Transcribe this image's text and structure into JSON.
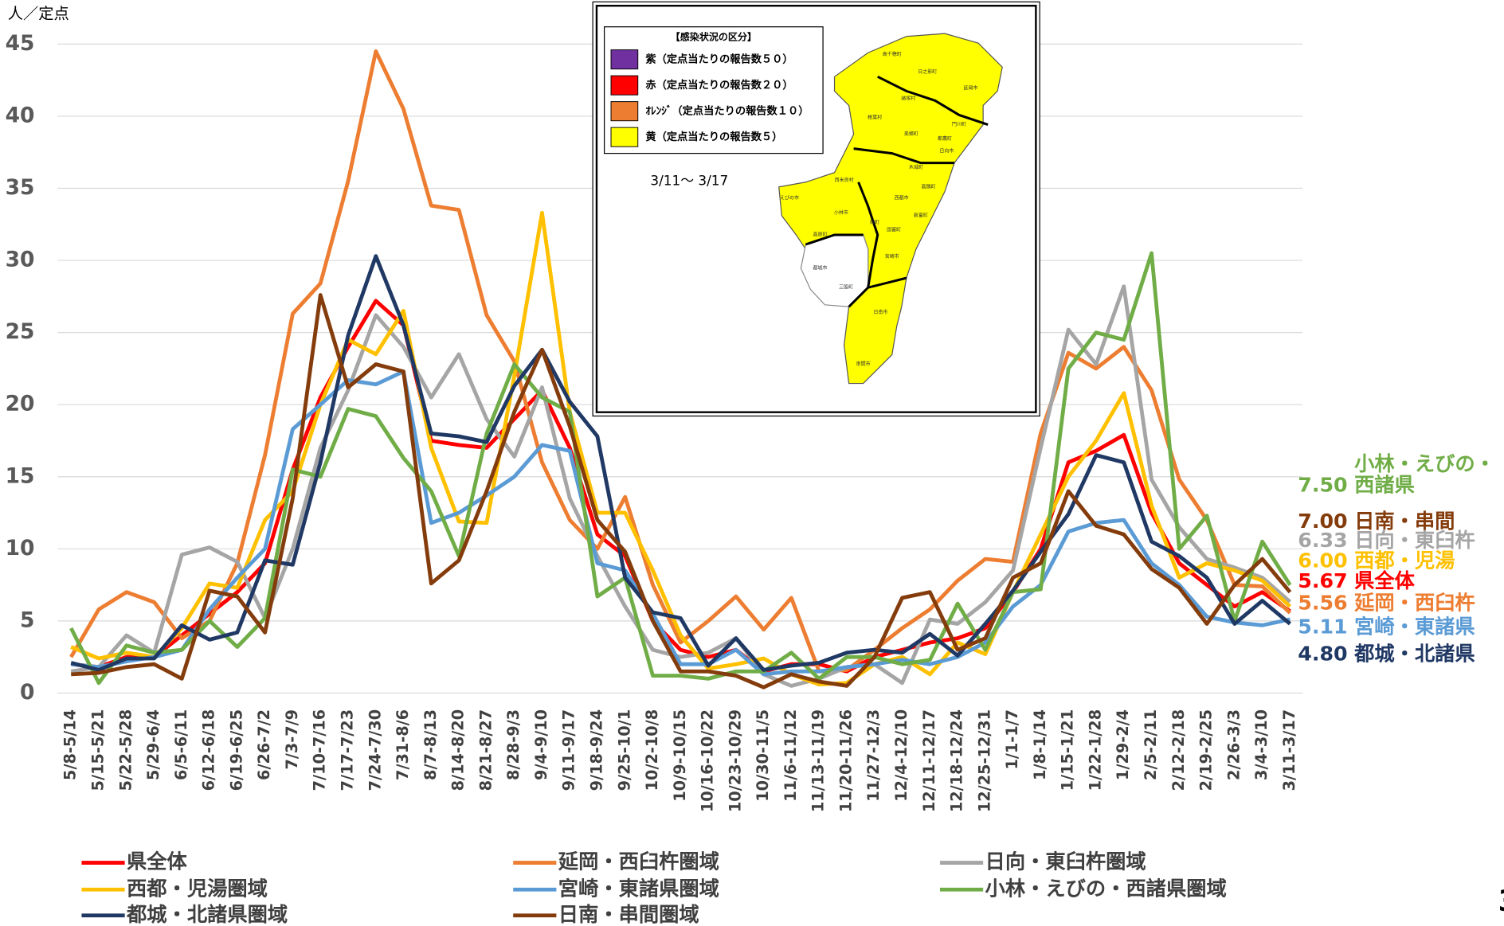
{
  "chart_data": {
    "type": "line",
    "y_axis_label": "人／定点",
    "page_number": "3",
    "categories": [
      "5/8-5/14",
      "5/15-5/21",
      "5/22-5/28",
      "5/29-6/4",
      "6/5-6/11",
      "6/12-6/18",
      "6/19-6/25",
      "6/26-7/2",
      "7/3-7/9",
      "7/10-7/16",
      "7/17-7/23",
      "7/24-7/30",
      "7/31-8/6",
      "8/7-8/13",
      "8/14-8/20",
      "8/21-8/27",
      "8/28-9/3",
      "9/4-9/10",
      "9/11-9/17",
      "9/18-9/24",
      "9/25-10/1",
      "10/2-10/8",
      "10/9-10/15",
      "10/16-10/22",
      "10/23-10/29",
      "10/30-11/5",
      "11/6-11/12",
      "11/13-11/19",
      "11/20-11/26",
      "11/27-12/3",
      "12/4-12/10",
      "12/11-12/17",
      "12/18-12/24",
      "12/25-12/31",
      "1/1-1/7",
      "1/8-1/14",
      "1/15-1/21",
      "1/22-1/28",
      "1/29-2/4",
      "2/5-2/11",
      "2/12-2/18",
      "2/19-2/25",
      "2/26-3/3",
      "3/4-3/10",
      "3/11-3/17"
    ],
    "ylim": [
      0,
      45
    ],
    "yticks": [
      0,
      5,
      10,
      15,
      20,
      25,
      30,
      35,
      40,
      45
    ],
    "grid": true,
    "series": [
      {
        "name": "県全体",
        "short_name": "県全体",
        "color": "#ff0000",
        "values": [
          2.0,
          1.8,
          2.5,
          2.5,
          4.0,
          5.5,
          7.0,
          9.0,
          15.5,
          20.5,
          24.0,
          27.2,
          25.5,
          17.5,
          17.2,
          17.0,
          19.0,
          21.0,
          17.0,
          11.0,
          9.5,
          5.0,
          3.0,
          2.5,
          3.0,
          1.5,
          2.0,
          2.0,
          1.5,
          2.5,
          3.0,
          3.5,
          3.8,
          4.5,
          7.0,
          10.0,
          16.0,
          16.8,
          17.9,
          12.5,
          9.0,
          7.5,
          6.0,
          7.0,
          5.67
        ],
        "value_labels": [
          null,
          null,
          null,
          null,
          null,
          null,
          null,
          null,
          null,
          null,
          null,
          null,
          null,
          null,
          null,
          null,
          null,
          null,
          null,
          null,
          null,
          null,
          null,
          null,
          null,
          null,
          null,
          null,
          null,
          null,
          null,
          null,
          null,
          null,
          null,
          null,
          null,
          null,
          null,
          null,
          null,
          null,
          null,
          null,
          "5.67"
        ]
      },
      {
        "name": "延岡・西臼杵圏域",
        "short_name": "延岡・西臼杵",
        "color": "#ed7d31",
        "values": [
          2.5,
          5.8,
          7.0,
          6.3,
          3.8,
          5.0,
          9.0,
          16.5,
          26.3,
          28.4,
          35.5,
          44.5,
          40.5,
          33.8,
          33.5,
          26.2,
          23.0,
          16.0,
          12.0,
          10.0,
          13.6,
          7.5,
          3.5,
          5.0,
          6.7,
          4.4,
          6.6,
          1.5,
          1.6,
          3.0,
          4.5,
          5.8,
          7.8,
          9.3,
          9.1,
          18.0,
          23.6,
          22.5,
          24.0,
          21.0,
          14.8,
          12.0,
          7.5,
          7.4,
          5.56
        ],
        "value_labels": [
          null,
          null,
          null,
          null,
          null,
          null,
          null,
          null,
          null,
          null,
          null,
          null,
          null,
          null,
          null,
          null,
          null,
          null,
          null,
          null,
          null,
          null,
          null,
          null,
          null,
          null,
          null,
          null,
          null,
          null,
          null,
          null,
          null,
          null,
          null,
          null,
          null,
          null,
          null,
          null,
          null,
          null,
          null,
          null,
          "5.56"
        ]
      },
      {
        "name": "日向・東臼杵圏域",
        "short_name": "日向・東臼杵",
        "color": "#a5a5a5",
        "values": [
          1.5,
          1.8,
          4.0,
          2.8,
          9.6,
          10.1,
          9.1,
          5.2,
          10.0,
          17.0,
          21.0,
          26.2,
          24.0,
          20.5,
          23.5,
          19.0,
          16.4,
          21.2,
          13.5,
          9.5,
          6.0,
          3.0,
          2.5,
          2.8,
          3.8,
          1.3,
          0.5,
          1.0,
          1.8,
          2.0,
          0.7,
          5.1,
          4.8,
          6.3,
          8.5,
          17.0,
          25.2,
          22.8,
          28.2,
          14.8,
          11.5,
          9.3,
          8.7,
          8.0,
          6.33
        ],
        "value_labels": [
          null,
          null,
          null,
          null,
          null,
          null,
          null,
          null,
          null,
          null,
          null,
          null,
          null,
          null,
          null,
          null,
          null,
          null,
          null,
          null,
          null,
          null,
          null,
          null,
          null,
          null,
          null,
          null,
          null,
          null,
          null,
          null,
          null,
          null,
          null,
          null,
          null,
          null,
          null,
          null,
          null,
          null,
          null,
          null,
          "6.33"
        ]
      },
      {
        "name": "西都・児湯圏域",
        "short_name": "西都・児湯",
        "color": "#ffc000",
        "values": [
          3.2,
          2.4,
          2.8,
          2.5,
          4.5,
          7.6,
          7.3,
          12.0,
          14.0,
          20.0,
          24.5,
          23.5,
          26.5,
          17.0,
          11.9,
          11.8,
          22.0,
          33.3,
          19.5,
          12.5,
          12.5,
          8.5,
          4.0,
          1.7,
          2.0,
          2.4,
          1.3,
          0.6,
          0.7,
          2.0,
          2.5,
          1.3,
          3.5,
          2.7,
          7.0,
          11.0,
          15.0,
          17.5,
          20.8,
          13.0,
          8.0,
          9.0,
          8.5,
          7.8,
          6.0
        ],
        "value_labels": [
          null,
          null,
          null,
          null,
          null,
          null,
          null,
          null,
          null,
          null,
          null,
          null,
          null,
          null,
          null,
          null,
          null,
          null,
          null,
          null,
          null,
          null,
          null,
          null,
          null,
          null,
          null,
          null,
          null,
          null,
          null,
          null,
          null,
          null,
          null,
          null,
          null,
          null,
          null,
          null,
          null,
          null,
          null,
          null,
          "6.00"
        ]
      },
      {
        "name": "宮崎・東諸県圏域",
        "short_name": "宮崎・東諸県",
        "color": "#5b9bd5",
        "values": [
          2.0,
          1.8,
          2.2,
          2.5,
          3.0,
          5.8,
          8.0,
          10.0,
          18.3,
          20.0,
          21.7,
          21.4,
          22.3,
          11.8,
          12.5,
          13.7,
          15.0,
          17.2,
          16.8,
          9.0,
          8.5,
          5.5,
          2.0,
          2.0,
          3.0,
          1.3,
          1.5,
          1.5,
          1.8,
          2.0,
          2.3,
          2.0,
          2.5,
          3.5,
          6.0,
          7.5,
          11.2,
          11.8,
          12.0,
          9.0,
          7.5,
          5.3,
          4.9,
          4.7,
          5.11
        ],
        "value_labels": [
          null,
          null,
          null,
          null,
          null,
          null,
          null,
          null,
          null,
          null,
          null,
          null,
          null,
          null,
          null,
          null,
          null,
          null,
          null,
          null,
          null,
          null,
          null,
          null,
          null,
          null,
          null,
          null,
          null,
          null,
          null,
          null,
          null,
          null,
          null,
          null,
          null,
          null,
          null,
          null,
          null,
          null,
          null,
          null,
          "5.11"
        ]
      },
      {
        "name": "小林・えびの・西諸県圏域",
        "short_name": "小林・えびの・西諸県",
        "color": "#70ad47",
        "values": [
          4.5,
          0.7,
          3.3,
          2.8,
          3.0,
          5.0,
          3.2,
          5.2,
          15.5,
          15.0,
          19.7,
          19.2,
          16.3,
          14.0,
          9.5,
          18.0,
          22.8,
          20.5,
          19.5,
          6.7,
          8.0,
          1.2,
          1.2,
          1.0,
          1.5,
          1.5,
          2.8,
          1.0,
          2.5,
          2.5,
          2.0,
          2.3,
          6.2,
          3.0,
          7.0,
          7.2,
          22.5,
          25.0,
          24.5,
          30.5,
          10.0,
          12.3,
          5.0,
          10.5,
          7.5
        ],
        "value_labels": [
          null,
          null,
          null,
          null,
          null,
          null,
          null,
          null,
          null,
          null,
          null,
          null,
          null,
          null,
          null,
          null,
          null,
          null,
          null,
          null,
          null,
          null,
          null,
          null,
          null,
          null,
          null,
          null,
          null,
          null,
          null,
          null,
          null,
          null,
          null,
          null,
          null,
          null,
          null,
          null,
          null,
          null,
          null,
          null,
          "7.50"
        ]
      },
      {
        "name": "都城・北諸県圏域",
        "short_name": "都城・北諸県",
        "color": "#203864",
        "values": [
          2.1,
          1.6,
          2.4,
          2.4,
          4.7,
          3.7,
          4.2,
          9.2,
          8.9,
          16.0,
          24.8,
          30.3,
          25.5,
          18.0,
          17.8,
          17.4,
          21.3,
          23.8,
          20.2,
          17.8,
          8.0,
          5.6,
          5.2,
          1.9,
          3.8,
          1.6,
          1.9,
          2.1,
          2.8,
          3.0,
          2.8,
          4.1,
          2.6,
          4.8,
          7.1,
          9.8,
          12.4,
          16.5,
          16.0,
          10.5,
          9.5,
          8.0,
          4.8,
          6.4,
          4.8
        ],
        "value_labels": [
          null,
          null,
          null,
          null,
          null,
          null,
          null,
          null,
          null,
          null,
          null,
          null,
          null,
          null,
          null,
          null,
          null,
          null,
          null,
          null,
          null,
          null,
          null,
          null,
          null,
          null,
          null,
          null,
          null,
          null,
          null,
          null,
          null,
          null,
          null,
          null,
          null,
          null,
          null,
          null,
          null,
          null,
          null,
          null,
          "4.80"
        ]
      },
      {
        "name": "日南・串間圏域",
        "short_name": "日南・串間",
        "color": "#843c0c",
        "values": [
          1.3,
          1.4,
          1.8,
          2.0,
          1.0,
          7.1,
          6.7,
          4.2,
          13.5,
          27.6,
          21.2,
          22.8,
          22.3,
          7.6,
          9.2,
          14.0,
          19.5,
          23.8,
          18.5,
          12.0,
          9.8,
          5.0,
          1.5,
          1.5,
          1.2,
          0.4,
          1.3,
          0.8,
          0.5,
          2.5,
          6.6,
          7.0,
          3.0,
          3.8,
          8.0,
          9.0,
          14.0,
          11.6,
          11.0,
          8.6,
          7.3,
          4.8,
          7.5,
          9.3,
          7.0
        ],
        "value_labels": [
          null,
          null,
          null,
          null,
          null,
          null,
          null,
          null,
          null,
          null,
          null,
          null,
          null,
          null,
          null,
          null,
          null,
          null,
          null,
          null,
          null,
          null,
          null,
          null,
          null,
          null,
          null,
          null,
          null,
          null,
          null,
          null,
          null,
          null,
          null,
          null,
          null,
          null,
          null,
          null,
          null,
          null,
          null,
          null,
          "7.00"
        ]
      }
    ]
  },
  "map": {
    "legend_title": "【感染状況の区分】",
    "legend": [
      {
        "label": "紫（定点当たりの報告数５０）",
        "color": "#7030a0"
      },
      {
        "label": "赤（定点当たりの報告数２０）",
        "color": "#ff0000"
      },
      {
        "label": "ｵﾚﾝｼﾞ（定点当たりの報告数１０）",
        "color": "#ed7d31"
      },
      {
        "label": "黄（定点当たりの報告数５）",
        "color": "#ffff00"
      }
    ],
    "period": "3/11～ 3/17",
    "places": [
      "高千穂町",
      "日之影町",
      "延岡市",
      "諸塚村",
      "椎葉村",
      "門川町",
      "日向市",
      "美郷町",
      "西米良村",
      "木城町",
      "都農町",
      "えびの市",
      "小林市",
      "西都市",
      "高鍋町",
      "新富町",
      "綾町",
      "国富町",
      "高原町",
      "宮崎市",
      "都城市",
      "三股町",
      "日南市",
      "串間市"
    ]
  }
}
